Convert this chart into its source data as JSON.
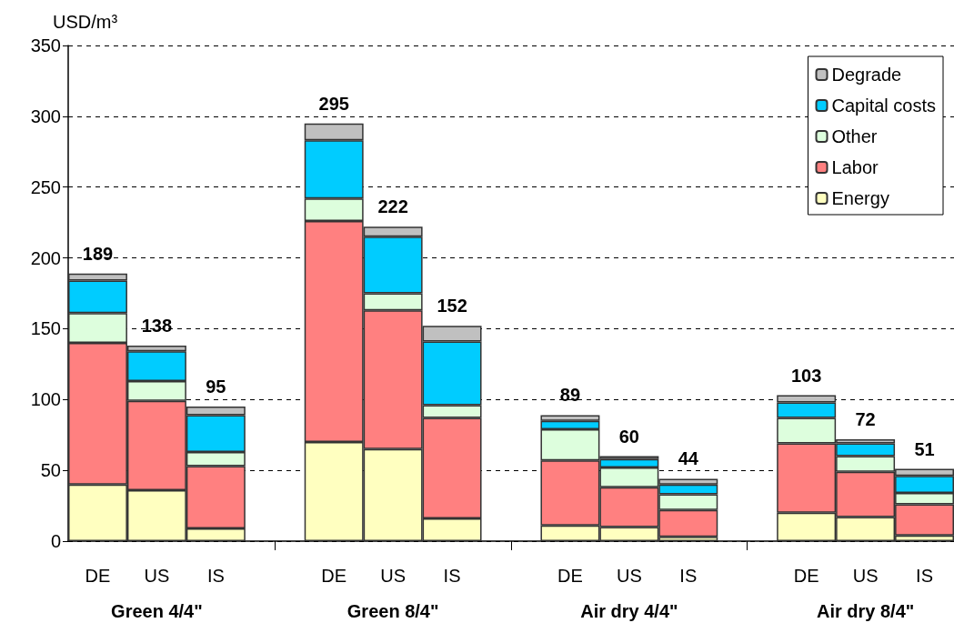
{
  "chart_data": {
    "type": "bar",
    "stacked": true,
    "ylabel": "USD/m³",
    "categories": [
      "DE",
      "US",
      "IS",
      null,
      "DE",
      "US",
      "IS",
      null,
      "DE",
      "US",
      "IS",
      null,
      "DE",
      "US",
      "IS"
    ],
    "series": [
      {
        "name": "Energy",
        "color": "#ffffc0",
        "values": [
          40,
          36,
          9,
          null,
          70,
          65,
          16,
          null,
          11,
          10,
          3,
          null,
          20,
          17,
          4
        ]
      },
      {
        "name": "Labor",
        "color": "#ff8080",
        "values": [
          100,
          63,
          44,
          null,
          156,
          98,
          71,
          null,
          46,
          28,
          19,
          null,
          49,
          32,
          22
        ]
      },
      {
        "name": "Other",
        "color": "#ddfedd",
        "values": [
          21,
          14,
          10,
          null,
          16,
          12,
          9,
          null,
          22,
          14,
          11,
          null,
          18,
          11,
          8
        ]
      },
      {
        "name": "Capital costs",
        "color": "#00ccff",
        "values": [
          23,
          21,
          26,
          null,
          41,
          40,
          45,
          null,
          6,
          6,
          7,
          null,
          11,
          9,
          12
        ]
      },
      {
        "name": "Degrade",
        "color": "#c0c0c0",
        "values": [
          5,
          4,
          6,
          null,
          12,
          7,
          11,
          null,
          4,
          2,
          4,
          null,
          5,
          3,
          5
        ]
      }
    ],
    "totals": [
      "189",
      "138",
      "95",
      null,
      "295",
      "222",
      "152",
      null,
      "89",
      "60",
      "44",
      null,
      "103",
      "72",
      "51"
    ],
    "annotations": [
      "Green 4/4\"",
      "Green 8/4\"",
      "Air dry 4/4\"",
      "Air dry 8/4\""
    ],
    "ylim": [
      0,
      350
    ],
    "yticks": [
      0,
      50,
      100,
      150,
      200,
      250,
      300,
      350
    ],
    "grid": "y",
    "legend": "top right"
  }
}
